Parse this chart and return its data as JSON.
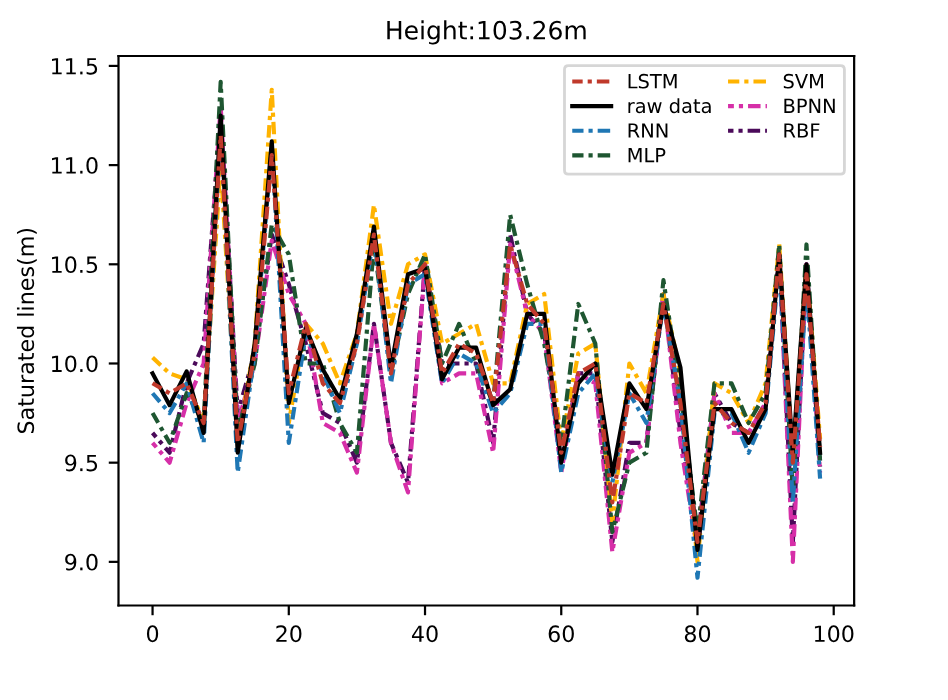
{
  "chart_data": {
    "type": "line",
    "title": "Height:103.26m",
    "ylabel": "Saturated lines(m)",
    "x": [
      0,
      2.5,
      5,
      7.5,
      10,
      12.5,
      15,
      17.5,
      20,
      22.5,
      25,
      27.5,
      30,
      32.5,
      35,
      37.5,
      40,
      42.5,
      45,
      47.5,
      50,
      52.5,
      55,
      57.5,
      60,
      62.5,
      65,
      67.5,
      70,
      72.5,
      75,
      77.5,
      80,
      82.5,
      85,
      87.5,
      90,
      92,
      94,
      96,
      98
    ],
    "xlim": [
      -5,
      103
    ],
    "xticks": [
      0,
      20,
      40,
      60,
      80,
      100
    ],
    "ylim": [
      8.78,
      11.55
    ],
    "yticks": [
      {
        "value": 9.0,
        "label": "9.0"
      },
      {
        "value": 9.5,
        "label": "9.5"
      },
      {
        "value": 10.0,
        "label": "10.0"
      },
      {
        "value": 10.5,
        "label": "10.5"
      },
      {
        "value": 11.0,
        "label": "11.0"
      },
      {
        "value": 11.5,
        "label": "11.5"
      }
    ],
    "legend": "top right",
    "grid": false,
    "series": [
      {
        "name": "LSTM",
        "color": "#c0392b",
        "line_style": "dashdot",
        "values": [
          9.9,
          9.85,
          9.9,
          9.7,
          11.15,
          9.6,
          10.05,
          11.05,
          9.85,
          10.2,
          9.9,
          9.8,
          10.1,
          10.65,
          9.95,
          10.4,
          10.5,
          9.95,
          10.1,
          10.05,
          9.8,
          10.6,
          10.3,
          10.2,
          9.55,
          9.95,
          10.0,
          9.3,
          9.85,
          9.8,
          10.3,
          9.8,
          9.1,
          9.8,
          9.7,
          9.65,
          9.8,
          10.55,
          9.5,
          10.45,
          9.58
        ]
      },
      {
        "name": "raw data",
        "color": "#000000",
        "line_style": "solid",
        "values": [
          9.95,
          9.79,
          9.96,
          9.65,
          11.25,
          9.55,
          10.1,
          11.12,
          9.8,
          10.18,
          9.97,
          9.82,
          10.15,
          10.69,
          9.98,
          10.45,
          10.48,
          9.92,
          10.08,
          10.08,
          9.79,
          9.87,
          10.25,
          10.25,
          9.5,
          9.9,
          10.0,
          9.44,
          9.9,
          9.77,
          10.3,
          9.98,
          9.06,
          9.77,
          9.77,
          9.6,
          9.77,
          10.55,
          9.55,
          10.5,
          9.55
        ]
      },
      {
        "name": "RNN",
        "color": "#1f77b4",
        "line_style": "dashdot",
        "values": [
          9.85,
          9.75,
          9.9,
          9.6,
          11.2,
          9.45,
          10.05,
          11.1,
          9.6,
          10.15,
          9.95,
          9.75,
          10.1,
          10.65,
          9.9,
          10.4,
          10.45,
          9.9,
          10.05,
          10.0,
          9.75,
          9.85,
          10.2,
          10.2,
          9.45,
          9.85,
          9.95,
          9.4,
          9.85,
          9.7,
          10.3,
          9.8,
          8.92,
          9.75,
          9.75,
          9.55,
          9.75,
          10.5,
          9.3,
          10.4,
          9.42
        ]
      },
      {
        "name": "MLP",
        "color": "#1e5631",
        "line_style": "dashdot",
        "values": [
          9.75,
          9.6,
          9.85,
          9.7,
          11.42,
          9.65,
          10.0,
          10.7,
          10.55,
          10.0,
          10.0,
          9.7,
          9.55,
          10.6,
          9.95,
          10.35,
          10.55,
          10.0,
          10.2,
          10.0,
          9.8,
          10.75,
          10.4,
          10.1,
          9.6,
          10.3,
          10.1,
          9.15,
          9.5,
          9.55,
          10.42,
          9.85,
          9.15,
          9.9,
          9.9,
          9.7,
          9.85,
          10.6,
          9.35,
          10.6,
          9.51
        ]
      },
      {
        "name": "SVM",
        "color": "#ffb300",
        "line_style": "dashdot",
        "values": [
          10.03,
          9.95,
          9.92,
          9.7,
          11.0,
          9.6,
          10.1,
          11.38,
          9.7,
          10.2,
          10.1,
          9.9,
          10.15,
          10.8,
          10.2,
          10.5,
          10.55,
          10.1,
          10.15,
          10.2,
          9.9,
          9.9,
          10.3,
          10.35,
          9.6,
          10.05,
          10.1,
          9.2,
          10.0,
          9.85,
          10.35,
          9.95,
          9.0,
          9.9,
          9.85,
          9.7,
          9.9,
          10.6,
          9.5,
          10.5,
          9.62
        ]
      },
      {
        "name": "BPNN",
        "color": "#d62fa8",
        "line_style": "dashdot",
        "values": [
          9.6,
          9.5,
          9.8,
          10.0,
          11.3,
          9.7,
          10.0,
          10.62,
          10.35,
          10.2,
          9.7,
          9.65,
          9.45,
          10.2,
          9.6,
          9.35,
          10.5,
          9.9,
          9.95,
          9.95,
          9.55,
          10.6,
          10.25,
          10.15,
          9.45,
          9.95,
          9.9,
          9.05,
          9.55,
          9.6,
          10.35,
          9.6,
          9.05,
          9.85,
          9.65,
          9.65,
          9.8,
          10.55,
          9.0,
          10.5,
          9.45
        ]
      },
      {
        "name": "RBF",
        "color": "#4b0a5a",
        "line_style": "dashdot",
        "values": [
          9.65,
          9.55,
          9.9,
          10.1,
          11.25,
          9.75,
          10.05,
          10.65,
          10.4,
          10.1,
          9.75,
          9.7,
          9.5,
          10.2,
          9.6,
          9.4,
          10.5,
          10.0,
          10.0,
          10.0,
          9.6,
          10.65,
          10.25,
          10.15,
          9.5,
          9.95,
          9.95,
          9.1,
          9.6,
          9.6,
          10.35,
          9.65,
          9.1,
          9.85,
          9.7,
          9.65,
          9.8,
          10.55,
          9.1,
          10.5,
          9.48
        ]
      }
    ]
  }
}
